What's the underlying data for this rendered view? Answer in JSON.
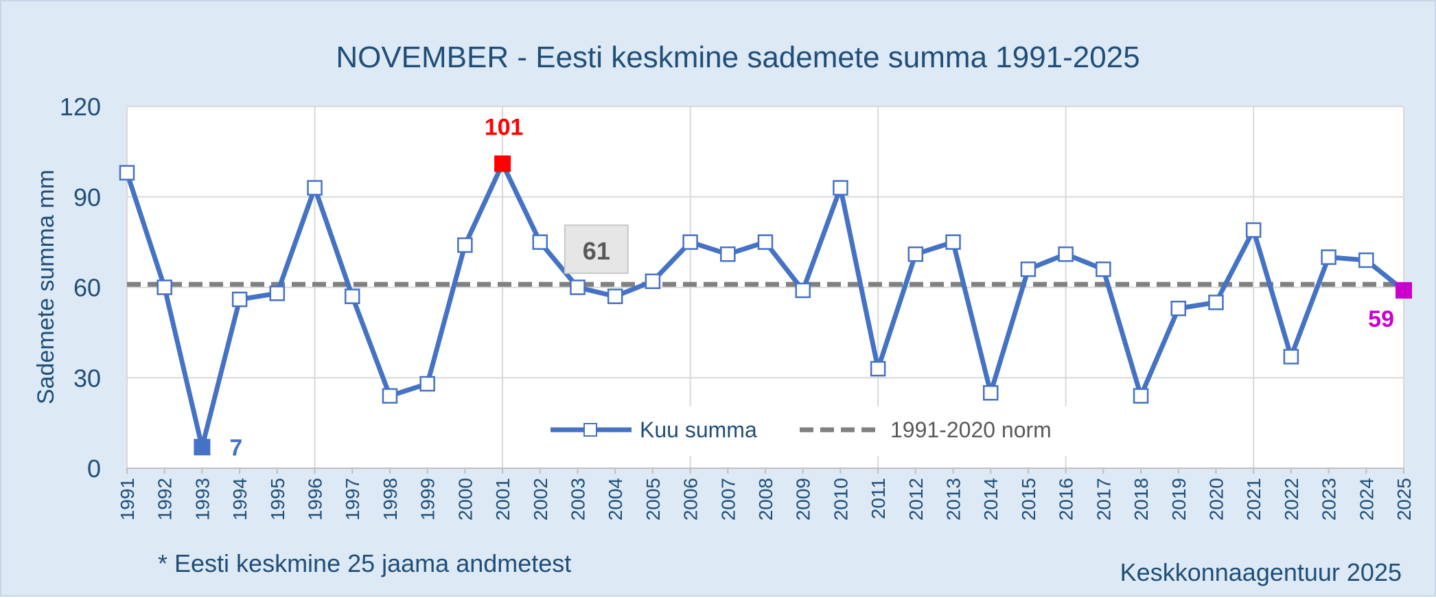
{
  "chart_data": {
    "type": "line",
    "title": "NOVEMBER - Eesti keskmine sademete summa 1991-2025",
    "ylabel": "Sademete summa mm",
    "ylim": [
      0,
      120
    ],
    "yticks": [
      0,
      30,
      60,
      90,
      120
    ],
    "grid": true,
    "categories": [
      "1991",
      "1992",
      "1993",
      "1994",
      "1995",
      "1996",
      "1997",
      "1998",
      "1999",
      "2000",
      "2001",
      "2002",
      "2003",
      "2004",
      "2005",
      "2006",
      "2007",
      "2008",
      "2009",
      "2010",
      "2011",
      "2012",
      "2013",
      "2014",
      "2015",
      "2016",
      "2017",
      "2018",
      "2019",
      "2020",
      "2021",
      "2022",
      "2023",
      "2024",
      "2025"
    ],
    "series": [
      {
        "name": "Kuu summa",
        "color": "#4472c4",
        "values": [
          98,
          60,
          7,
          56,
          58,
          93,
          57,
          24,
          28,
          74,
          101,
          75,
          60,
          57,
          62,
          75,
          71,
          75,
          59,
          93,
          33,
          71,
          75,
          25,
          66,
          71,
          66,
          24,
          53,
          55,
          79,
          37,
          70,
          69,
          59
        ]
      },
      {
        "name": "1991-2020 norm",
        "color": "#808080",
        "style": "dashed",
        "value": 61
      }
    ],
    "highlights": [
      {
        "category": "1993",
        "label": "7",
        "color": "#4472c4"
      },
      {
        "category": "2001",
        "label": "101",
        "color": "#ff0000"
      },
      {
        "category": "2025",
        "label": "59",
        "color": "#cc00cc"
      }
    ],
    "norm_label": "61",
    "legend_position": "bottom-center"
  },
  "footer": {
    "note": "* Eesti keskmine 25 jaama andmetest",
    "source": "Keskkonnaagentuur 2025"
  }
}
